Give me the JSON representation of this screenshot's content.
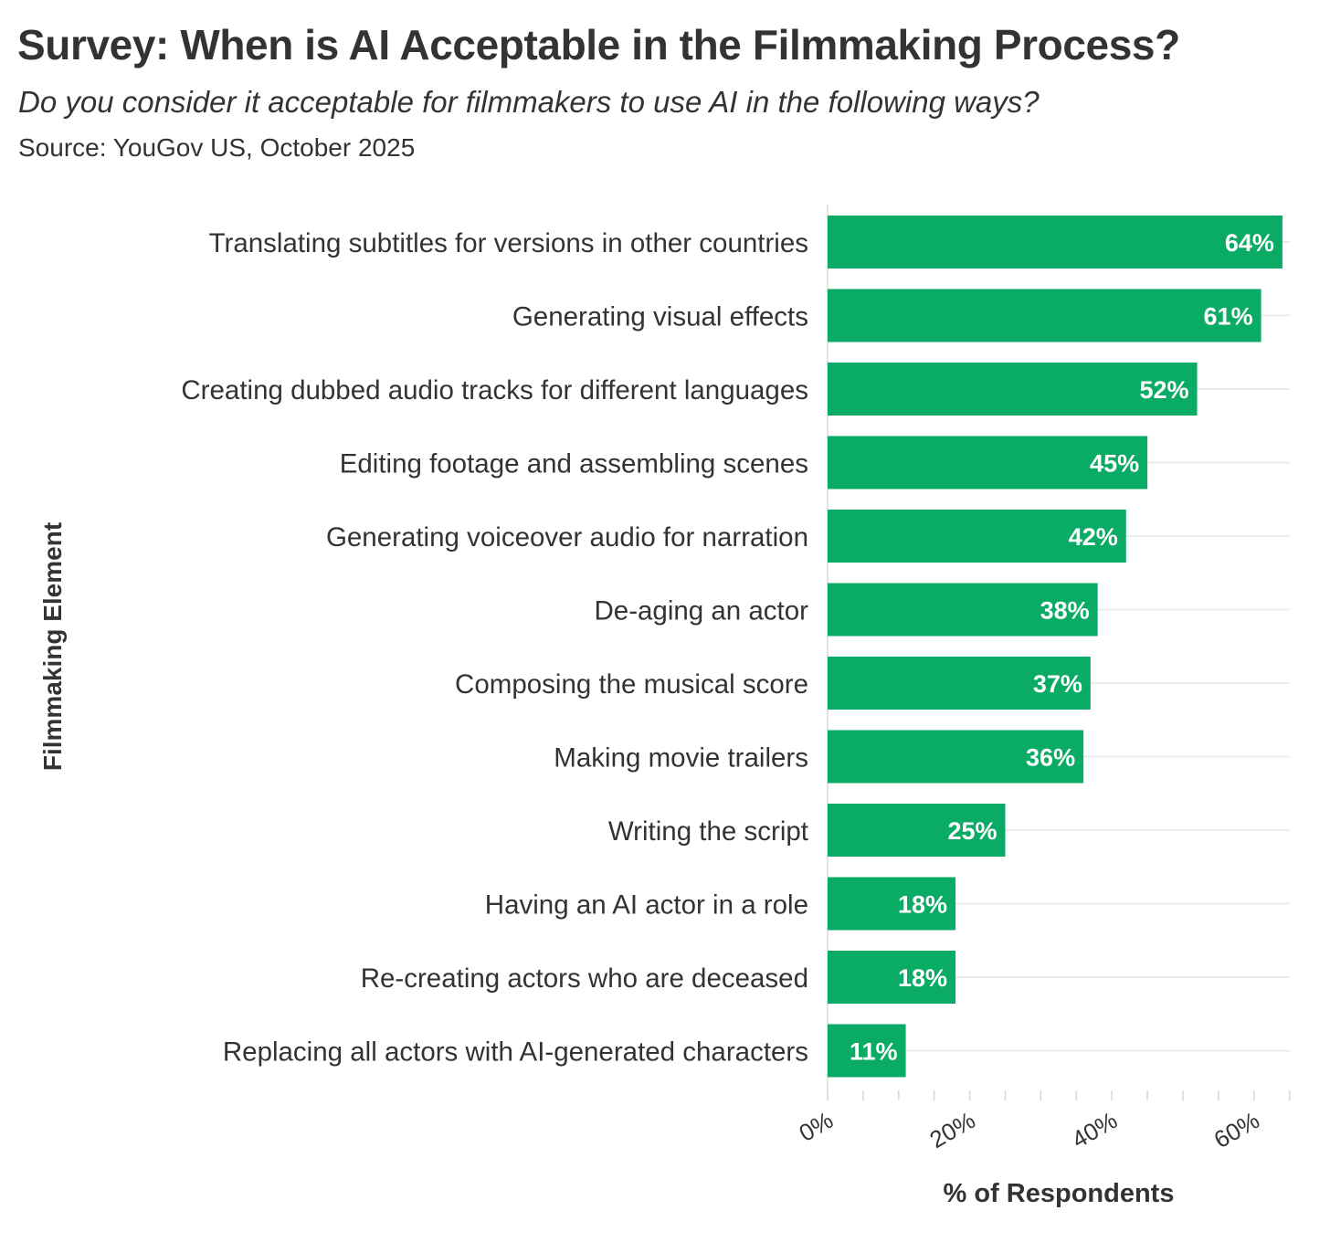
{
  "chart_data": {
    "type": "bar",
    "orientation": "horizontal",
    "title": "Survey: When is AI Acceptable in the Filmmaking Process?",
    "subtitle": "Do you consider it acceptable for filmmakers to use AI in the following ways?",
    "source": "Source: YouGov US, October 2025",
    "xlabel": "% of Respondents",
    "ylabel": "Filmmaking Element",
    "categories": [
      "Translating subtitles for versions in other countries",
      "Generating visual effects",
      "Creating dubbed audio tracks for different languages",
      "Editing footage and assembling scenes",
      "Generating voiceover audio for narration",
      "De-aging an actor",
      "Composing the musical score",
      "Making movie trailers",
      "Writing the script",
      "Having an AI actor in a role",
      "Re-creating actors who are deceased",
      "Replacing all actors with AI-generated characters"
    ],
    "values": [
      64,
      61,
      52,
      45,
      42,
      38,
      37,
      36,
      25,
      18,
      18,
      11
    ],
    "data_labels": [
      "64%",
      "61%",
      "52%",
      "45%",
      "42%",
      "38%",
      "37%",
      "36%",
      "25%",
      "18%",
      "18%",
      "11%"
    ],
    "xlim": [
      0,
      65
    ],
    "xticks": [
      0,
      20,
      40,
      60
    ],
    "xtick_labels": [
      "0%",
      "20%",
      "40%",
      "60%"
    ],
    "grid": "horizontal lines behind bars",
    "bar_color": "#0aab64",
    "label_color": "#ffffff",
    "text_color": "#333333",
    "grid_color": "#ebebeb"
  }
}
